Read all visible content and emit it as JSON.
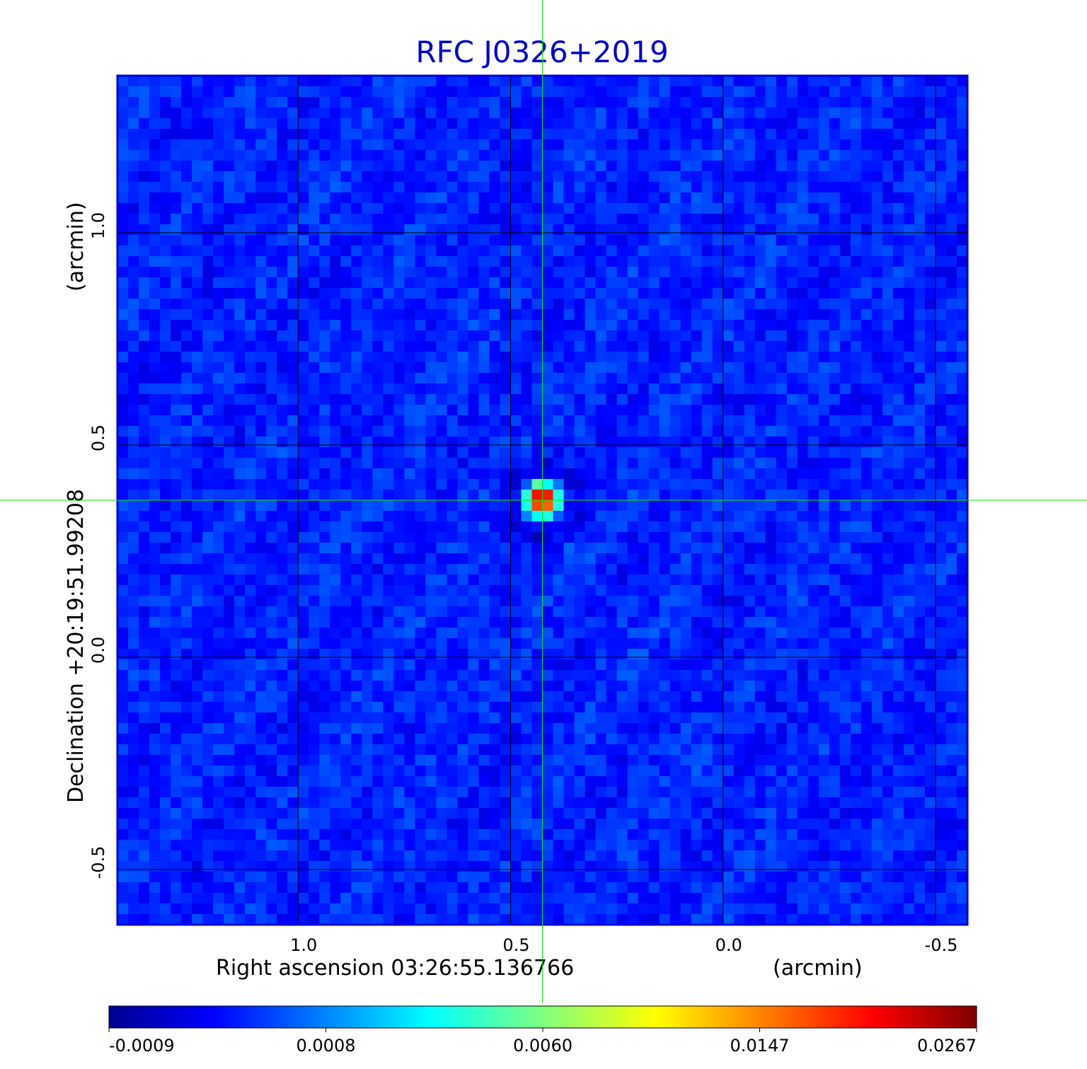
{
  "chart_data": {
    "type": "heatmap",
    "title": "RFC J0326+2019",
    "xlabel": "Right ascension  03:26:55.136766",
    "xunit": "(arcmin)",
    "ylabel": "Declination  +20:19:51.99208",
    "yunit": "(arcmin)",
    "x_ticks": [
      "1.0",
      "0.5",
      "0.0",
      "-0.5"
    ],
    "x_tick_values": [
      1.0,
      0.5,
      0.0,
      -0.5
    ],
    "y_ticks": [
      "1.0",
      "0.5",
      "0.0",
      "-0.5"
    ],
    "y_tick_values": [
      1.0,
      0.5,
      0.0,
      -0.5
    ],
    "xlim": [
      1.425,
      -0.575
    ],
    "ylim": [
      -0.63,
      1.37
    ],
    "grid": true,
    "colormap": "jet",
    "colorbar_ticks": [
      "-0.0009",
      "0.0008",
      "0.0060",
      "0.0147",
      "0.0267"
    ],
    "colorbar_range": [
      -0.0009,
      0.0267
    ],
    "source": {
      "ra_offset_arcmin": 0.425,
      "dec_offset_arcmin": 0.37,
      "peak": 0.0267
    },
    "crosshair": {
      "x": 0.425,
      "y": 0.37
    },
    "colors": {
      "frame": "#0000dd",
      "crosshair": "#00ee00",
      "grid": "#000000",
      "title": "#0000cc"
    }
  }
}
